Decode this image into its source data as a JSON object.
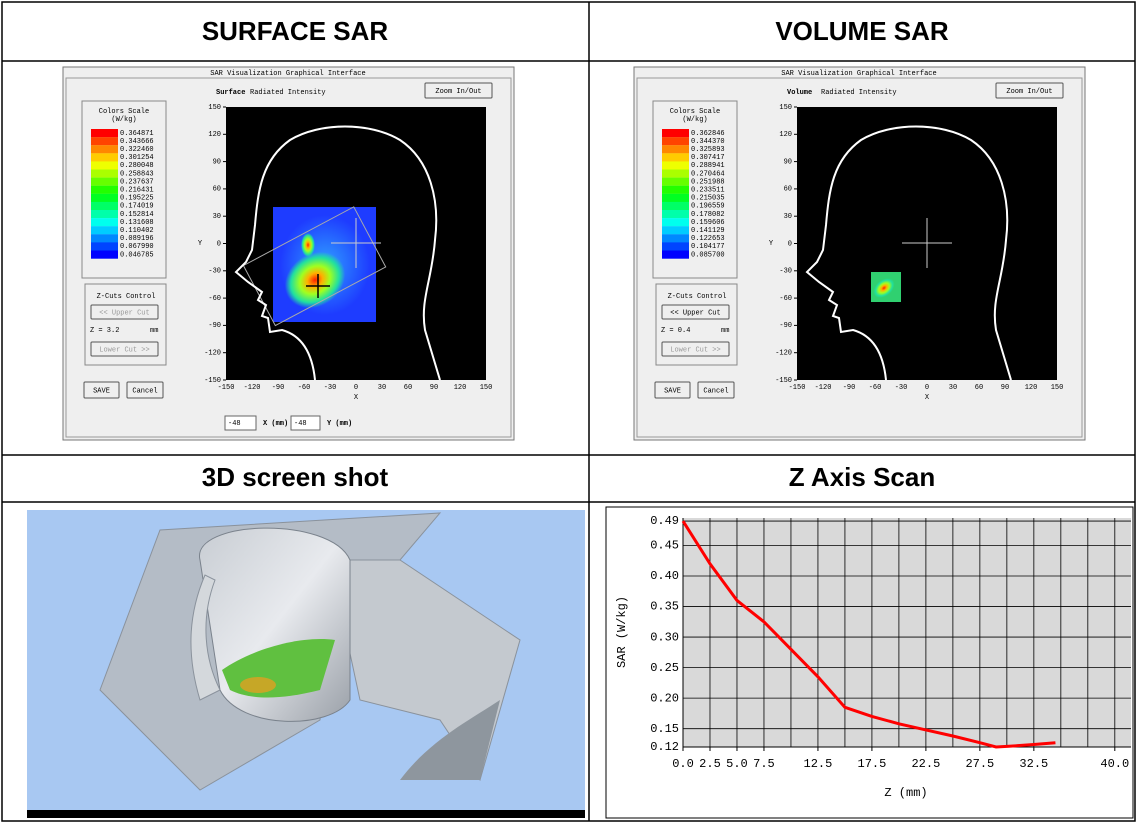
{
  "table": {
    "headers": [
      "SURFACE SAR",
      "VOLUME SAR",
      "3D screen shot",
      "Z Axis Scan"
    ]
  },
  "panels": [
    {
      "window_title": "SAR Visualization Graphical Interface",
      "mode": "Surface",
      "mode_label": "Radiated Intensity",
      "zoom_button": "Zoom In/Out",
      "scale_title": "Colors Scale",
      "scale_unit": "(W/kg)",
      "scale_values": [
        "0.364871",
        "0.343666",
        "0.322460",
        "0.301254",
        "0.280048",
        "0.258843",
        "0.237637",
        "0.216431",
        "0.195225",
        "0.174019",
        "0.152814",
        "0.131608",
        "0.110402",
        "0.089196",
        "0.067990",
        "0.046785"
      ],
      "y_ticks": [
        150,
        120,
        90,
        60,
        30,
        0,
        -30,
        -60,
        -90,
        -120,
        -150
      ],
      "y_label": "Y",
      "x_ticks": [
        -150,
        -120,
        -90,
        -60,
        -30,
        0,
        30,
        60,
        90,
        120,
        150
      ],
      "x_label": "X",
      "zcuts_title": "Z-Cuts Control",
      "upper_cut": "<< Upper Cut",
      "z_value": "Z = 3.2",
      "z_unit": "mm",
      "lower_cut": "Lower Cut >>",
      "save": "SAVE",
      "cancel": "Cancel",
      "x_field": "-48",
      "x_field_label": "X (mm)",
      "y_field": "-48",
      "y_field_label": "Y (mm)"
    },
    {
      "window_title": "SAR Visualization Graphical Interface",
      "mode": "Volume",
      "mode_label": "Radiated Intensity",
      "zoom_button": "Zoom In/Out",
      "scale_title": "Colors Scale",
      "scale_unit": "(W/kg)",
      "scale_values": [
        "0.362846",
        "0.344370",
        "0.325893",
        "0.307417",
        "0.288941",
        "0.270464",
        "0.251988",
        "0.233511",
        "0.215035",
        "0.196559",
        "0.178082",
        "0.159606",
        "0.141129",
        "0.122653",
        "0.104177",
        "0.085700"
      ],
      "y_ticks": [
        150,
        120,
        90,
        60,
        30,
        0,
        -30,
        -60,
        -90,
        -120,
        -150
      ],
      "y_label": "Y",
      "x_ticks": [
        -150,
        -120,
        -90,
        -60,
        -30,
        0,
        30,
        60,
        90,
        120,
        150
      ],
      "x_label": "X",
      "zcuts_title": "Z-Cuts Control",
      "upper_cut": "<< Upper Cut",
      "z_value": "Z = 0.4",
      "z_unit": "mm",
      "lower_cut": "Lower Cut >>",
      "save": "SAVE",
      "cancel": "Cancel"
    }
  ],
  "chart_data": {
    "type": "line",
    "x_label": "Z (mm)",
    "y_label": "SAR (W/kg)",
    "x": [
      0,
      2.5,
      5,
      7.5,
      10,
      12.5,
      15,
      17.5,
      20,
      22.5,
      25,
      27.5,
      29,
      30,
      32.5,
      34.5
    ],
    "series": [
      {
        "color": "#ff0000",
        "values": [
          0.49,
          0.42,
          0.36,
          0.325,
          0.28,
          0.235,
          0.185,
          0.17,
          0.158,
          0.148,
          0.138,
          0.127,
          0.12,
          0.121,
          0.124,
          0.127
        ]
      }
    ],
    "xlim": [
      0,
      41.5
    ],
    "ylim": [
      0.12,
      0.495
    ],
    "xticks": [
      {
        "value": 0,
        "label": "0.0"
      },
      {
        "value": 2.5,
        "label": "2.5"
      },
      {
        "value": 5,
        "label": "5.0"
      },
      {
        "value": 7.5,
        "label": "7.5"
      },
      {
        "value": 12.5,
        "label": "12.5"
      },
      {
        "value": 17.5,
        "label": "17.5"
      },
      {
        "value": 22.5,
        "label": "22.5"
      },
      {
        "value": 27.5,
        "label": "27.5"
      },
      {
        "value": 32.5,
        "label": "32.5"
      },
      {
        "value": 40,
        "label": "40.0"
      }
    ],
    "xgrid": [
      0,
      2.5,
      5,
      7.5,
      10,
      12.5,
      15,
      17.5,
      20,
      22.5,
      25,
      27.5,
      30,
      32.5,
      35,
      37.5,
      40
    ],
    "yticks": [
      0.49,
      0.45,
      {
        "value": 0.4,
        "label": "0.40"
      },
      0.35,
      {
        "value": 0.3,
        "label": "0.30"
      },
      0.25,
      {
        "value": 0.2,
        "label": "0.20"
      },
      0.15,
      0.12
    ],
    "grid": true
  }
}
